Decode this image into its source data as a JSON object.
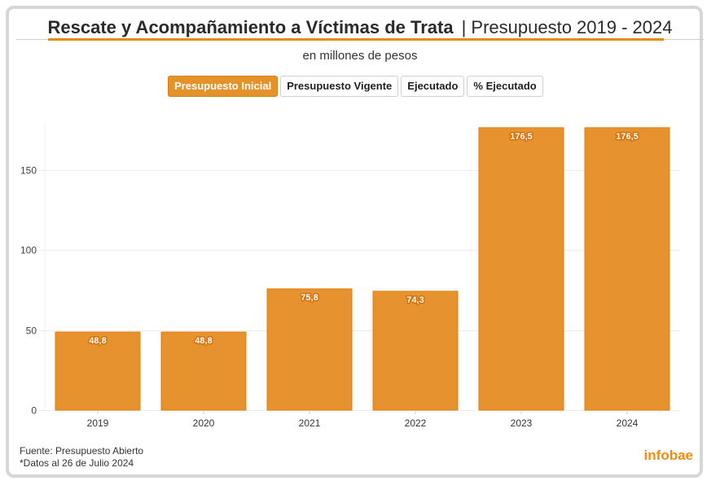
{
  "header": {
    "title_main": "Rescate y Acompañamiento a Víctimas de Trata",
    "title_sep": "| Presupuesto 2019 - 2024",
    "subtitle": "en millones de pesos"
  },
  "tabs": [
    {
      "label": "Presupuesto Inicial",
      "active": true
    },
    {
      "label": "Presupuesto Vigente",
      "active": false
    },
    {
      "label": "Ejecutado",
      "active": false
    },
    {
      "label": "% Ejecutado",
      "active": false
    }
  ],
  "footer": {
    "source": "Fuente: Presupuesto Abierto",
    "note": "*Datos al 26 de Julio 2024",
    "brand": "infobae"
  },
  "colors": {
    "bar": "#e6922f",
    "bar_stroke": "#e27f0b",
    "accent": "#e68a0d",
    "brand": "#f28c0f",
    "grid": "#ececec"
  },
  "chart_data": {
    "type": "bar",
    "title": "Rescate y Acompañamiento a Víctimas de Trata | Presupuesto 2019 - 2024",
    "subtitle": "en millones de pesos",
    "xlabel": "",
    "ylabel": "",
    "categories": [
      "2019",
      "2020",
      "2021",
      "2022",
      "2023",
      "2024"
    ],
    "series": [
      {
        "name": "Presupuesto Inicial",
        "values": [
          48.8,
          48.8,
          75.8,
          74.3,
          176.5,
          176.5
        ]
      }
    ],
    "data_labels": [
      "48,8",
      "48,8",
      "75,8",
      "74,3",
      "176,5",
      "176,5"
    ],
    "yticks": [
      0,
      50,
      100,
      150
    ],
    "ylim": [
      0,
      180
    ],
    "grid": true,
    "legend": "none"
  }
}
